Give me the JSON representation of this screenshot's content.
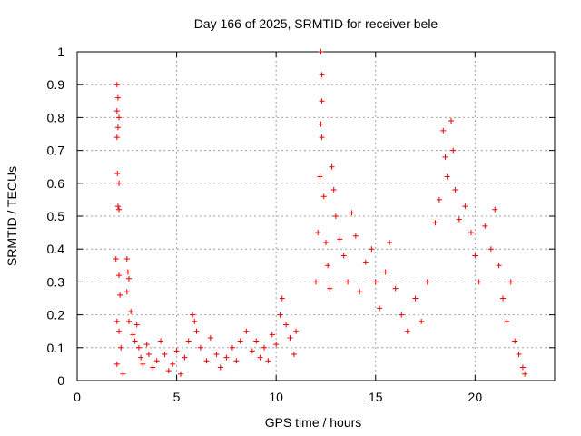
{
  "chart_data": {
    "type": "scatter",
    "title": "Day 166 of 2025, SRMTID for receiver bele",
    "xlabel": "GPS time / hours",
    "ylabel": "SRMTID / TECUs",
    "xlim": [
      0,
      24
    ],
    "ylim": [
      0,
      1
    ],
    "xticks": [
      0,
      5,
      10,
      15,
      20
    ],
    "xtick_labels": [
      "0",
      "5",
      "10",
      "15",
      "20"
    ],
    "yticks": [
      0,
      0.1,
      0.2,
      0.3,
      0.4,
      0.5,
      0.6,
      0.7,
      0.8,
      0.9,
      1
    ],
    "ytick_labels": [
      "0",
      "0.1",
      "0.2",
      "0.3",
      "0.4",
      "0.5",
      "0.6",
      "0.7",
      "0.8",
      "0.9",
      "1"
    ],
    "grid": true,
    "marker": "+",
    "color": "#ee0000",
    "series": [
      {
        "name": "SRMTID",
        "points": [
          [
            2.0,
            0.9
          ],
          [
            2.05,
            0.86
          ],
          [
            2.0,
            0.82
          ],
          [
            2.1,
            0.8
          ],
          [
            2.05,
            0.77
          ],
          [
            2.0,
            0.74
          ],
          [
            2.02,
            0.63
          ],
          [
            2.1,
            0.6
          ],
          [
            2.05,
            0.53
          ],
          [
            2.1,
            0.52
          ],
          [
            1.95,
            0.37
          ],
          [
            2.1,
            0.32
          ],
          [
            2.15,
            0.26
          ],
          [
            2.0,
            0.18
          ],
          [
            2.1,
            0.15
          ],
          [
            2.2,
            0.1
          ],
          [
            2.0,
            0.05
          ],
          [
            2.3,
            0.02
          ],
          [
            2.5,
            0.37
          ],
          [
            2.55,
            0.33
          ],
          [
            2.6,
            0.31
          ],
          [
            2.5,
            0.27
          ],
          [
            2.7,
            0.21
          ],
          [
            2.6,
            0.18
          ],
          [
            2.8,
            0.14
          ],
          [
            2.9,
            0.12
          ],
          [
            3.0,
            0.17
          ],
          [
            3.1,
            0.1
          ],
          [
            3.2,
            0.07
          ],
          [
            3.3,
            0.05
          ],
          [
            3.5,
            0.11
          ],
          [
            3.6,
            0.08
          ],
          [
            3.8,
            0.04
          ],
          [
            4.0,
            0.06
          ],
          [
            4.2,
            0.12
          ],
          [
            4.4,
            0.08
          ],
          [
            4.6,
            0.03
          ],
          [
            4.8,
            0.05
          ],
          [
            5.0,
            0.09
          ],
          [
            5.2,
            0.02
          ],
          [
            5.4,
            0.07
          ],
          [
            5.6,
            0.12
          ],
          [
            5.8,
            0.2
          ],
          [
            5.9,
            0.18
          ],
          [
            6.0,
            0.15
          ],
          [
            6.2,
            0.1
          ],
          [
            6.5,
            0.06
          ],
          [
            6.7,
            0.13
          ],
          [
            7.0,
            0.08
          ],
          [
            7.2,
            0.04
          ],
          [
            7.5,
            0.07
          ],
          [
            7.8,
            0.1
          ],
          [
            8.0,
            0.06
          ],
          [
            8.2,
            0.12
          ],
          [
            8.5,
            0.15
          ],
          [
            8.8,
            0.09
          ],
          [
            9.0,
            0.12
          ],
          [
            9.2,
            0.07
          ],
          [
            9.4,
            0.1
          ],
          [
            9.6,
            0.06
          ],
          [
            9.8,
            0.14
          ],
          [
            10.0,
            0.11
          ],
          [
            10.2,
            0.2
          ],
          [
            10.3,
            0.25
          ],
          [
            10.5,
            0.17
          ],
          [
            10.7,
            0.13
          ],
          [
            10.9,
            0.08
          ],
          [
            11.0,
            0.15
          ],
          [
            12.0,
            0.3
          ],
          [
            12.1,
            0.45
          ],
          [
            12.2,
            0.62
          ],
          [
            12.25,
            1.0
          ],
          [
            12.3,
            0.93
          ],
          [
            12.3,
            0.85
          ],
          [
            12.25,
            0.78
          ],
          [
            12.3,
            0.74
          ],
          [
            12.4,
            0.56
          ],
          [
            12.5,
            0.42
          ],
          [
            12.6,
            0.35
          ],
          [
            12.7,
            0.28
          ],
          [
            12.8,
            0.65
          ],
          [
            12.9,
            0.58
          ],
          [
            13.0,
            0.5
          ],
          [
            13.2,
            0.43
          ],
          [
            13.4,
            0.38
          ],
          [
            13.6,
            0.3
          ],
          [
            13.8,
            0.51
          ],
          [
            14.0,
            0.44
          ],
          [
            14.2,
            0.27
          ],
          [
            14.5,
            0.36
          ],
          [
            14.8,
            0.4
          ],
          [
            15.0,
            0.3
          ],
          [
            15.2,
            0.22
          ],
          [
            15.5,
            0.33
          ],
          [
            15.7,
            0.42
          ],
          [
            16.0,
            0.28
          ],
          [
            16.3,
            0.2
          ],
          [
            16.6,
            0.15
          ],
          [
            17.0,
            0.25
          ],
          [
            17.3,
            0.18
          ],
          [
            17.6,
            0.3
          ],
          [
            18.0,
            0.48
          ],
          [
            18.2,
            0.55
          ],
          [
            18.4,
            0.76
          ],
          [
            18.5,
            0.68
          ],
          [
            18.6,
            0.62
          ],
          [
            18.8,
            0.79
          ],
          [
            18.9,
            0.7
          ],
          [
            19.0,
            0.58
          ],
          [
            19.2,
            0.49
          ],
          [
            19.5,
            0.53
          ],
          [
            19.8,
            0.45
          ],
          [
            20.0,
            0.38
          ],
          [
            20.2,
            0.3
          ],
          [
            20.5,
            0.47
          ],
          [
            20.8,
            0.4
          ],
          [
            21.0,
            0.52
          ],
          [
            21.2,
            0.35
          ],
          [
            21.4,
            0.25
          ],
          [
            21.6,
            0.18
          ],
          [
            21.8,
            0.3
          ],
          [
            22.0,
            0.12
          ],
          [
            22.2,
            0.08
          ],
          [
            22.4,
            0.04
          ],
          [
            22.5,
            0.02
          ]
        ]
      }
    ]
  }
}
